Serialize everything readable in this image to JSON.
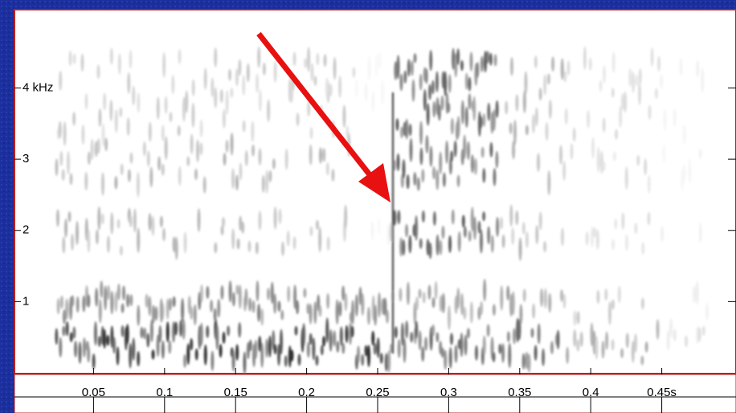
{
  "chart_data": {
    "type": "spectrogram",
    "xlim": [
      0,
      0.5
    ],
    "xticks": [
      0.05,
      0.1,
      0.15,
      0.2,
      0.25,
      0.3,
      0.35,
      0.4,
      {
        "value": 0.45,
        "label": "0.45s"
      }
    ],
    "ylim": [
      0,
      5.1
    ],
    "yticks": [
      1,
      2,
      3,
      {
        "value": 4,
        "label": "4 kHz"
      }
    ]
  }
}
